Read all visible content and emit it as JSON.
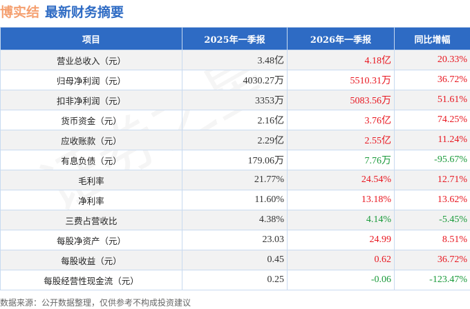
{
  "header": {
    "company": "博实结",
    "title": "最新财务摘要"
  },
  "watermark": "证券之星",
  "table": {
    "columns": [
      "项目",
      "2025年一季报",
      "2026年一季报",
      "同比增幅"
    ],
    "rows": [
      {
        "item": "营业总收入（元）",
        "prev": "3.48亿",
        "curr": "4.18亿",
        "change": "20.33%",
        "dir": "up"
      },
      {
        "item": "归母净利润（元）",
        "prev": "4030.27万",
        "curr": "5510.31万",
        "change": "36.72%",
        "dir": "up"
      },
      {
        "item": "扣非净利润（元）",
        "prev": "3353万",
        "curr": "5083.56万",
        "change": "51.61%",
        "dir": "up"
      },
      {
        "item": "货币资金（元）",
        "prev": "2.16亿",
        "curr": "3.76亿",
        "change": "74.25%",
        "dir": "up"
      },
      {
        "item": "应收账款（元）",
        "prev": "2.29亿",
        "curr": "2.55亿",
        "change": "11.24%",
        "dir": "up"
      },
      {
        "item": "有息负债（元）",
        "prev": "179.06万",
        "curr": "7.76万",
        "change": "-95.67%",
        "dir": "down"
      },
      {
        "item": "毛利率",
        "prev": "21.77%",
        "curr": "24.54%",
        "change": "12.71%",
        "dir": "up"
      },
      {
        "item": "净利率",
        "prev": "11.60%",
        "curr": "13.18%",
        "change": "13.62%",
        "dir": "up"
      },
      {
        "item": "三费占营收比",
        "prev": "4.38%",
        "curr": "4.14%",
        "change": "-5.45%",
        "dir": "down"
      },
      {
        "item": "每股净资产（元）",
        "prev": "23.03",
        "curr": "24.99",
        "change": "8.51%",
        "dir": "up"
      },
      {
        "item": "每股收益（元）",
        "prev": "0.45",
        "curr": "0.62",
        "change": "36.72%",
        "dir": "up"
      },
      {
        "item": "每股经营性现金流（元）",
        "prev": "0.25",
        "curr": "-0.06",
        "change": "-123.47%",
        "dir": "down"
      }
    ]
  },
  "footer": "数据来源：公开数据整理，仅供参考不构成投资建议",
  "colors": {
    "up": "#e8161f",
    "down": "#1a9a3a",
    "header": "#2e6bc4"
  }
}
